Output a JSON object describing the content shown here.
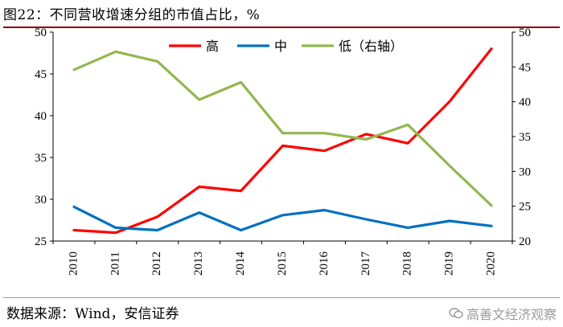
{
  "header": {
    "title": "图22：不同营收增速分组的市值占比，%"
  },
  "footer": {
    "source": "数据来源：Wind，安信证券",
    "watermark": "高善文经济观察"
  },
  "chart_data": {
    "type": "line",
    "x": [
      "2010",
      "2011",
      "2012",
      "2013",
      "2014",
      "2015",
      "2016",
      "2017",
      "2018",
      "2019",
      "2020"
    ],
    "y_left": {
      "min": 25,
      "max": 50,
      "ticks": [
        25,
        30,
        35,
        40,
        45,
        50
      ]
    },
    "y_right": {
      "min": 20,
      "max": 50,
      "ticks": [
        20,
        25,
        30,
        35,
        40,
        45,
        50
      ]
    },
    "series": [
      {
        "name": "高",
        "axis": "left",
        "color": "#ff0000",
        "values": [
          26.3,
          26.0,
          27.9,
          31.5,
          31.0,
          36.4,
          35.8,
          37.8,
          36.7,
          41.7,
          48.0
        ]
      },
      {
        "name": "中",
        "axis": "left",
        "color": "#0070c0",
        "values": [
          29.1,
          26.6,
          26.3,
          28.4,
          26.3,
          28.1,
          28.7,
          27.6,
          26.6,
          27.4,
          26.8
        ]
      },
      {
        "name": "低（右轴）",
        "axis": "right",
        "color": "#92b74f",
        "values": [
          44.6,
          47.2,
          45.8,
          40.3,
          42.8,
          35.5,
          35.5,
          34.6,
          36.7,
          30.8,
          25.1
        ]
      }
    ],
    "legend": "top-center",
    "grid": false
  }
}
